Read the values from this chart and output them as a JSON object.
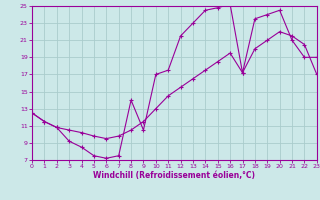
{
  "xlabel": "Windchill (Refroidissement éolien,°C)",
  "bg_color": "#cce8e8",
  "grid_color": "#aacccc",
  "line_color": "#990099",
  "xlim": [
    0,
    23
  ],
  "ylim": [
    7,
    25
  ],
  "xticks": [
    0,
    1,
    2,
    3,
    4,
    5,
    6,
    7,
    8,
    9,
    10,
    11,
    12,
    13,
    14,
    15,
    16,
    17,
    18,
    19,
    20,
    21,
    22,
    23
  ],
  "yticks": [
    7,
    9,
    11,
    13,
    15,
    17,
    19,
    21,
    23,
    25
  ],
  "line1_x": [
    0,
    1,
    2,
    3,
    4,
    5,
    6,
    7,
    8,
    9,
    10,
    11,
    12,
    13,
    14,
    15,
    16,
    17,
    18,
    19,
    20,
    21,
    22,
    23
  ],
  "line1_y": [
    12.5,
    11.5,
    10.8,
    9.2,
    8.5,
    7.5,
    7.2,
    7.5,
    14,
    10.5,
    17,
    17.5,
    21.5,
    23,
    24.5,
    24.8,
    25.2,
    17.2,
    23.5,
    24,
    24.5,
    21,
    19,
    19
  ],
  "line2_x": [
    0,
    1,
    2,
    3,
    4,
    5,
    6,
    7,
    8,
    9,
    10,
    11,
    12,
    13,
    14,
    15,
    16,
    17,
    18,
    19,
    20,
    21,
    22,
    23
  ],
  "line2_y": [
    12.5,
    11.5,
    10.8,
    10.5,
    10.2,
    9.8,
    9.5,
    9.8,
    10.5,
    11.5,
    13,
    14.5,
    15.5,
    16.5,
    17.5,
    18.5,
    19.5,
    17.2,
    20,
    21,
    22,
    21.5,
    20.5,
    17
  ]
}
